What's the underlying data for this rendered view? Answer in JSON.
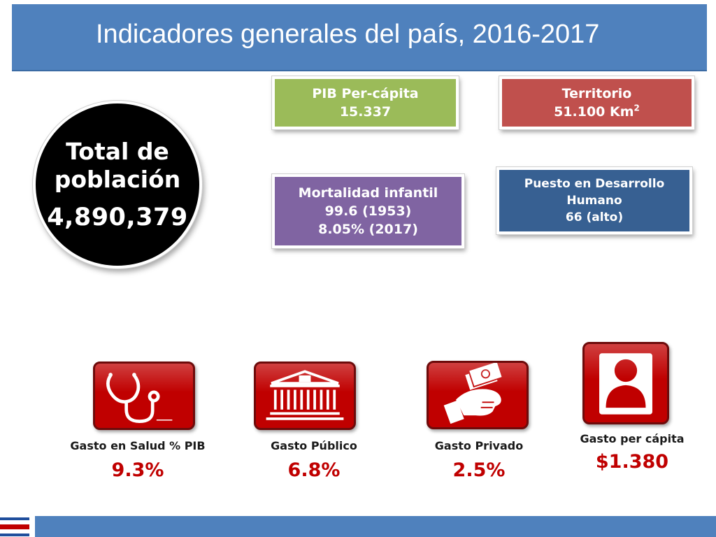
{
  "title": "Indicadores generales del país, 2016-2017",
  "population": {
    "label_line1": "Total de",
    "label_line2": "población",
    "value": "4,890,379"
  },
  "boxes": {
    "pib": {
      "label": "PIB Per-cápita",
      "value": "15.337",
      "color": "#9bbb59"
    },
    "territorio": {
      "label": "Territorio",
      "value": "51.100 Km",
      "unit_sup": "2",
      "color": "#c0504d"
    },
    "mortalidad": {
      "label": "Mortalidad infantil",
      "value1": "99.6 (1953)",
      "value2": "8.05% (2017)",
      "color": "#8064a2"
    },
    "desarrollo": {
      "label_line1": "Puesto en Desarrollo",
      "label_line2": "Humano",
      "value": "66 (alto)",
      "color": "#376092"
    }
  },
  "indicators": [
    {
      "label": "Gasto en Salud % PIB",
      "value": "9.3%",
      "icon": "stethoscope-icon"
    },
    {
      "label": "Gasto Público",
      "value": "6.8%",
      "icon": "government-building-icon"
    },
    {
      "label": "Gasto Privado",
      "value": "2.5%",
      "icon": "hand-money-icon"
    },
    {
      "label": "Gasto per cápita",
      "value": "$1.380",
      "icon": "person-icon"
    }
  ],
  "colors": {
    "accent_blue": "#4f81bd",
    "icon_red": "#c00000",
    "value_red": "#c00000"
  }
}
